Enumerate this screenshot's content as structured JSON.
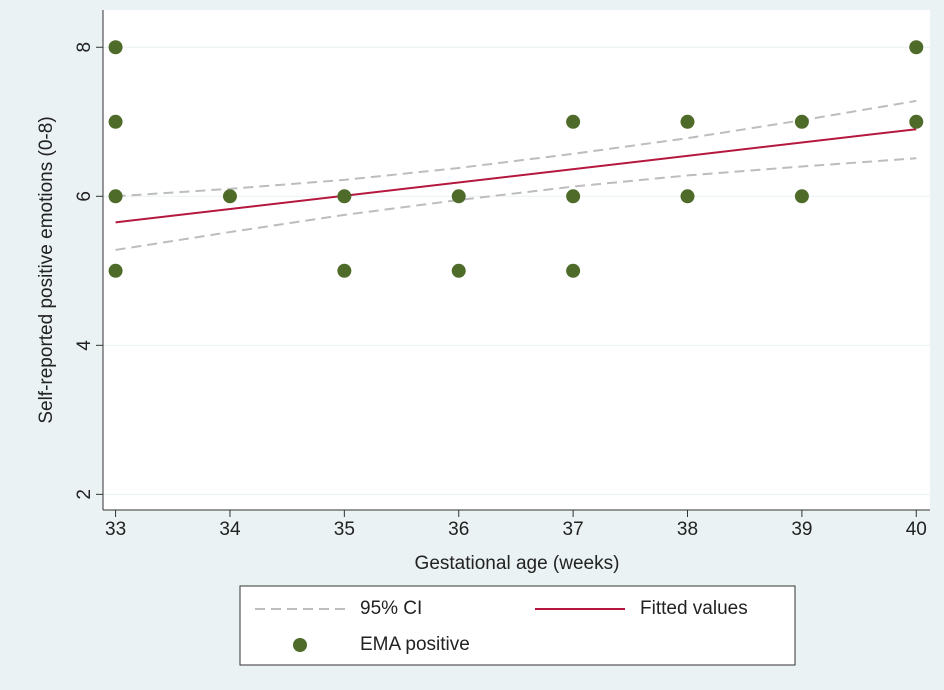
{
  "chart_data": {
    "type": "scatter",
    "x_label": "Gestational age (weeks)",
    "y_label": "Self-reported positive emotions (0-8)",
    "xlim": [
      32.89,
      40.12
    ],
    "ylim": [
      1.79,
      8.5
    ],
    "xticks": [
      33,
      34,
      35,
      36,
      37,
      38,
      39,
      40
    ],
    "yticks": [
      2,
      4,
      6,
      8
    ],
    "grid": true,
    "series": [
      {
        "name": "95% CI",
        "type": "band-lines",
        "color": "#bdbdbd",
        "x": [
          33,
          34,
          35,
          36,
          37,
          38,
          39,
          40
        ],
        "upper": [
          6.0,
          6.1,
          6.22,
          6.38,
          6.57,
          6.78,
          7.02,
          7.28
        ],
        "lower": [
          5.28,
          5.52,
          5.75,
          5.95,
          6.13,
          6.28,
          6.4,
          6.51
        ]
      },
      {
        "name": "Fitted values",
        "type": "line",
        "color": "#b5173f",
        "x": [
          33,
          40
        ],
        "values": [
          5.65,
          6.9
        ]
      },
      {
        "name": "EMA positive",
        "type": "points",
        "color": "#4f6b2a",
        "x": [
          33,
          33,
          33,
          33,
          34,
          35,
          35,
          36,
          36,
          37,
          37,
          37,
          38,
          38,
          39,
          39,
          40,
          40
        ],
        "values": [
          8,
          7,
          6,
          5,
          6,
          6,
          5,
          6,
          5,
          7,
          6,
          5,
          7,
          6,
          7,
          6,
          8,
          7
        ]
      }
    ]
  }
}
